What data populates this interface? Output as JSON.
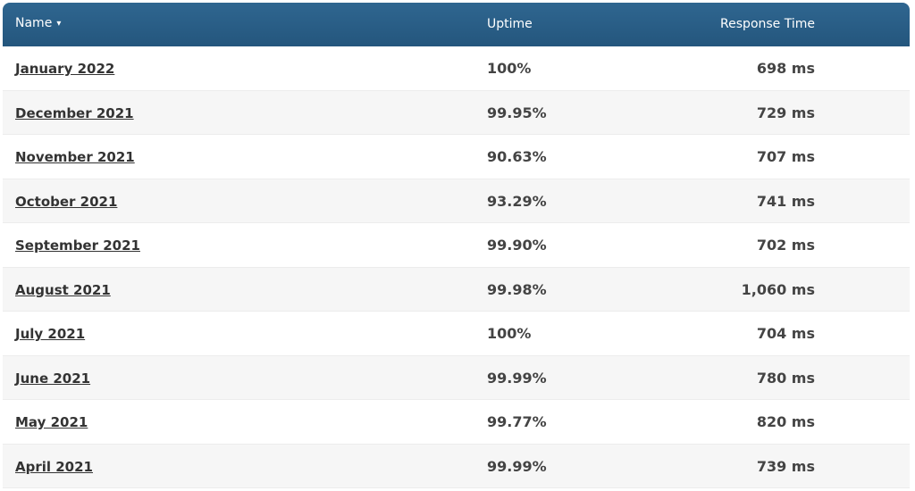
{
  "header": {
    "name_label": "Name",
    "sort_icon": "▾",
    "uptime_label": "Uptime",
    "response_label": "Response Time"
  },
  "rows": [
    {
      "name": "January 2022",
      "uptime": "100%",
      "response": "698 ms"
    },
    {
      "name": "December 2021",
      "uptime": "99.95%",
      "response": "729 ms"
    },
    {
      "name": "November 2021",
      "uptime": "90.63%",
      "response": "707 ms"
    },
    {
      "name": "October 2021",
      "uptime": "93.29%",
      "response": "741 ms"
    },
    {
      "name": "September 2021",
      "uptime": "99.90%",
      "response": "702 ms"
    },
    {
      "name": "August 2021",
      "uptime": "99.98%",
      "response": "1,060 ms"
    },
    {
      "name": "July 2021",
      "uptime": "100%",
      "response": "704 ms"
    },
    {
      "name": "June 2021",
      "uptime": "99.99%",
      "response": "780 ms"
    },
    {
      "name": "May 2021",
      "uptime": "99.77%",
      "response": "820 ms"
    },
    {
      "name": "April 2021",
      "uptime": "99.99%",
      "response": "739 ms"
    }
  ],
  "colors": {
    "header_bg": "#2a5f88",
    "row_alt_bg": "#f6f6f6",
    "text": "#444444"
  }
}
